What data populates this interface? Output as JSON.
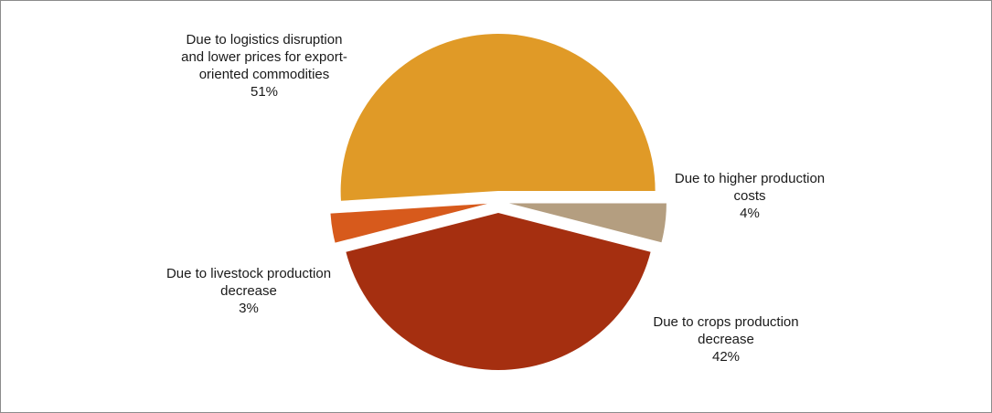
{
  "chart_data": {
    "type": "pie",
    "title": "",
    "slices": [
      {
        "lines": [
          "Due to higher production",
          "costs"
        ],
        "pct_label": "4%",
        "value": 4,
        "color": "#b49e80"
      },
      {
        "lines": [
          "Due to crops production",
          "decrease"
        ],
        "pct_label": "42%",
        "value": 42,
        "color": "#a52f10"
      },
      {
        "lines": [
          "Due to livestock production",
          "decrease"
        ],
        "pct_label": "3%",
        "value": 3,
        "color": "#d75a1c"
      },
      {
        "lines": [
          "Due to logistics disruption",
          "and lower  prices for export-",
          "oriented commodities"
        ],
        "pct_label": "51%",
        "value": 51,
        "color": "#e09a27"
      }
    ],
    "legend": "none",
    "slices_exploded": true
  }
}
